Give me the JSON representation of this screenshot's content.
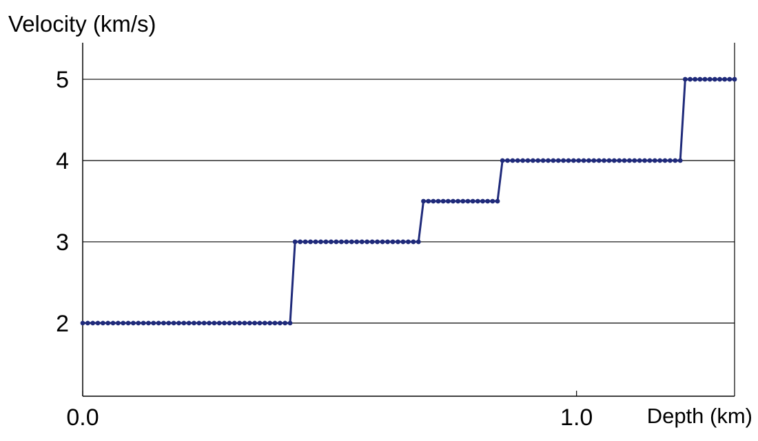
{
  "chart_data": {
    "type": "line",
    "title": "",
    "ylabel": "Velocity (km/s)",
    "xlabel": "Depth (km)",
    "xlim": [
      0,
      1.32
    ],
    "ylim": [
      1.1,
      5.45
    ],
    "x_ticks": [
      {
        "value": 0,
        "label": "0.0"
      },
      {
        "value": 1.0,
        "label": "1.0"
      }
    ],
    "y_ticks": [
      {
        "value": 2,
        "label": "2"
      },
      {
        "value": 3,
        "label": "3"
      },
      {
        "value": 4,
        "label": "4"
      },
      {
        "value": 5,
        "label": "5"
      }
    ],
    "gridlines": "horizontal",
    "legend": "none",
    "series": [
      {
        "color": "#1f2a7a",
        "marker": "dot",
        "segments": [
          {
            "x_start": 0.0,
            "x_end": 0.42,
            "y": 2.0
          },
          {
            "x_start": 0.43,
            "x_end": 0.68,
            "y": 3.0
          },
          {
            "x_start": 0.69,
            "x_end": 0.84,
            "y": 3.5
          },
          {
            "x_start": 0.85,
            "x_end": 1.21,
            "y": 4.0
          },
          {
            "x_start": 1.22,
            "x_end": 1.32,
            "y": 5.0
          }
        ]
      }
    ]
  }
}
